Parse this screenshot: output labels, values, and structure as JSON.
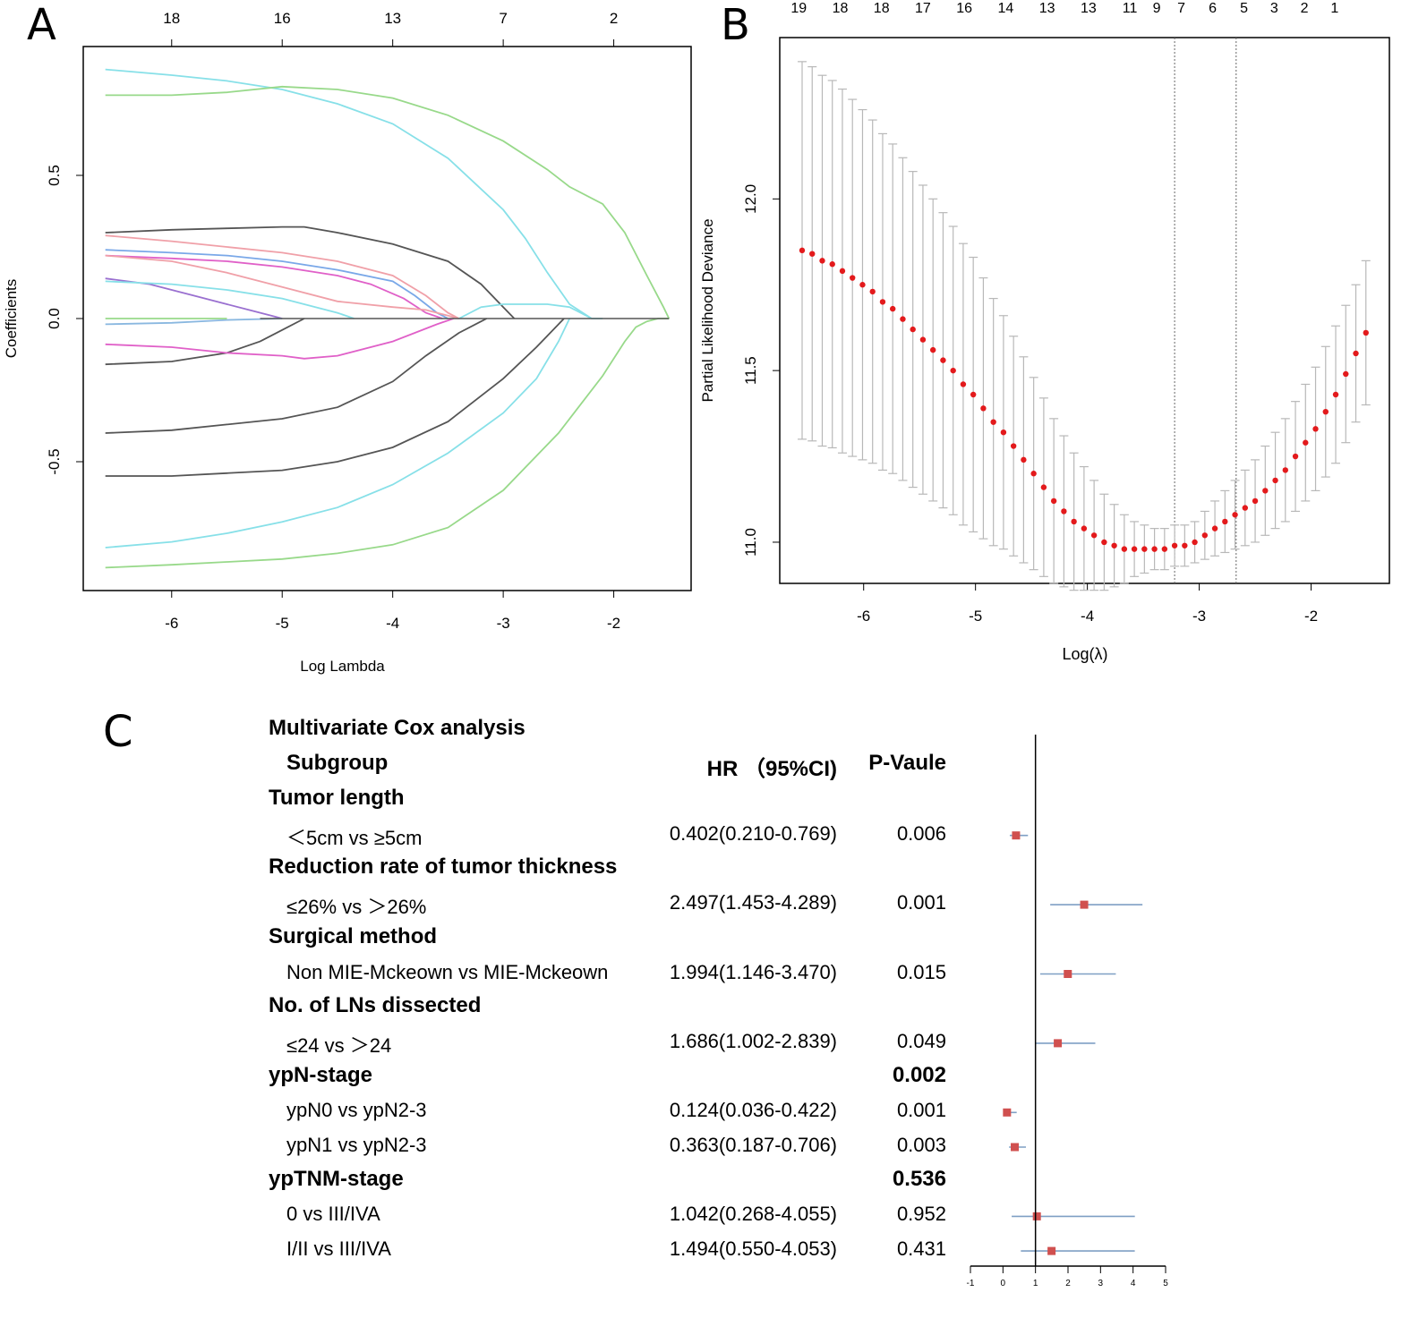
{
  "panels": {
    "A": {
      "label": "A",
      "chart_data": {
        "type": "line",
        "title": "",
        "xlabel": "Log Lambda",
        "ylabel": "Coefficients",
        "xlim": [
          -6.8,
          -1.3
        ],
        "ylim": [
          -0.95,
          0.95
        ],
        "xticks": [
          -6,
          -5,
          -4,
          -3,
          -2
        ],
        "yticks": [
          -0.5,
          0.0,
          0.5
        ],
        "top_axis": {
          "positions": [
            -6,
            -5,
            -4,
            -3,
            -2
          ],
          "labels": [
            "18",
            "16",
            "13",
            "7",
            "2"
          ]
        },
        "series": [
          {
            "color": "#87e0e8",
            "x": [
              -6.6,
              -6,
              -5.5,
              -5,
              -4.5,
              -4,
              -3.5,
              -3,
              -2.8,
              -2.6,
              -2.4,
              -2.2,
              -2.1
            ],
            "y": [
              0.87,
              0.85,
              0.83,
              0.8,
              0.75,
              0.68,
              0.56,
              0.38,
              0.28,
              0.16,
              0.05,
              0.0,
              0.0
            ]
          },
          {
            "color": "#98d98a",
            "x": [
              -6.6,
              -6,
              -5.5,
              -5,
              -4.5,
              -4,
              -3.5,
              -3,
              -2.6,
              -2.4,
              -2.1,
              -1.9,
              -1.7,
              -1.55,
              -1.5
            ],
            "y": [
              0.78,
              0.78,
              0.79,
              0.81,
              0.8,
              0.77,
              0.71,
              0.62,
              0.52,
              0.46,
              0.4,
              0.3,
              0.15,
              0.04,
              0.0
            ]
          },
          {
            "color": "#555555",
            "x": [
              -6.6,
              -6,
              -5.5,
              -5,
              -4.8,
              -4.5,
              -4,
              -3.5,
              -3.2,
              -3,
              -2.9
            ],
            "y": [
              0.3,
              0.31,
              0.315,
              0.32,
              0.32,
              0.3,
              0.26,
              0.2,
              0.12,
              0.04,
              0.0
            ]
          },
          {
            "color": "#f0a0a8",
            "x": [
              -6.6,
              -6,
              -5.5,
              -5,
              -4.5,
              -4,
              -3.7,
              -3.5,
              -3.4
            ],
            "y": [
              0.29,
              0.27,
              0.25,
              0.23,
              0.2,
              0.15,
              0.08,
              0.02,
              0.0
            ]
          },
          {
            "color": "#7aa8e8",
            "x": [
              -6.6,
              -6,
              -5.5,
              -5,
              -4.5,
              -4,
              -3.8,
              -3.6,
              -3.5
            ],
            "y": [
              0.24,
              0.23,
              0.22,
              0.2,
              0.17,
              0.13,
              0.08,
              0.02,
              0.0
            ]
          },
          {
            "color": "#e060c8",
            "x": [
              -6.6,
              -6,
              -5.5,
              -5,
              -4.5,
              -4.2,
              -3.9,
              -3.7,
              -3.55
            ],
            "y": [
              0.22,
              0.21,
              0.2,
              0.18,
              0.15,
              0.12,
              0.07,
              0.02,
              0.0
            ]
          },
          {
            "color": "#f0a0a8",
            "x": [
              -6.6,
              -6,
              -5.5,
              -5,
              -4.5,
              -4,
              -3.7,
              -3.5,
              -3.4
            ],
            "y": [
              0.22,
              0.2,
              0.16,
              0.11,
              0.06,
              0.04,
              0.03,
              0.01,
              0.0
            ]
          },
          {
            "color": "#9a70d0",
            "x": [
              -6.6,
              -6.2,
              -5.8,
              -5.5,
              -5.3,
              -5.1,
              -5.0
            ],
            "y": [
              0.14,
              0.12,
              0.08,
              0.05,
              0.03,
              0.01,
              0.0
            ]
          },
          {
            "color": "#87e0e8",
            "x": [
              -6.6,
              -6,
              -5.5,
              -5,
              -4.7,
              -4.5,
              -4.35
            ],
            "y": [
              0.13,
              0.12,
              0.1,
              0.07,
              0.04,
              0.02,
              0.0
            ]
          },
          {
            "color": "#8ab8e0",
            "x": [
              -6.6,
              -6,
              -5.5,
              -5
            ],
            "y": [
              -0.02,
              -0.015,
              -0.005,
              0.0
            ]
          },
          {
            "color": "#98d98a",
            "x": [
              -6.6,
              -5.5
            ],
            "y": [
              0.0,
              0.0
            ]
          },
          {
            "color": "#555555",
            "x": [
              -6.6,
              -6,
              -5.5,
              -5.2,
              -5.0,
              -4.8
            ],
            "y": [
              -0.16,
              -0.15,
              -0.12,
              -0.08,
              -0.04,
              0.0
            ]
          },
          {
            "color": "#e060c8",
            "x": [
              -6.6,
              -6,
              -5.5,
              -5,
              -4.8,
              -4.5,
              -4,
              -3.8,
              -3.6,
              -3.45
            ],
            "y": [
              -0.09,
              -0.1,
              -0.12,
              -0.13,
              -0.14,
              -0.13,
              -0.08,
              -0.05,
              -0.02,
              0.0
            ]
          },
          {
            "color": "#87e0e8",
            "x": [
              -3.4,
              -3.2,
              -3,
              -2.6,
              -2.4,
              -2.2
            ],
            "y": [
              0.0,
              0.04,
              0.05,
              0.05,
              0.04,
              0.0
            ]
          },
          {
            "color": "#555555",
            "x": [
              -6.6,
              -6,
              -5.5,
              -5,
              -4.5,
              -4,
              -3.7,
              -3.4,
              -3.2,
              -3.15
            ],
            "y": [
              -0.4,
              -0.39,
              -0.37,
              -0.35,
              -0.31,
              -0.22,
              -0.13,
              -0.05,
              -0.01,
              0.0
            ]
          },
          {
            "color": "#555555",
            "x": [
              -6.6,
              -6,
              -5.5,
              -5,
              -4.5,
              -4,
              -3.5,
              -3,
              -2.7,
              -2.5,
              -2.45
            ],
            "y": [
              -0.55,
              -0.55,
              -0.54,
              -0.53,
              -0.5,
              -0.45,
              -0.36,
              -0.21,
              -0.1,
              -0.02,
              0.0
            ]
          },
          {
            "color": "#87e0e8",
            "x": [
              -6.6,
              -6,
              -5.5,
              -5,
              -4.5,
              -4,
              -3.5,
              -3,
              -2.7,
              -2.5,
              -2.4
            ],
            "y": [
              -0.8,
              -0.78,
              -0.75,
              -0.71,
              -0.66,
              -0.58,
              -0.47,
              -0.33,
              -0.21,
              -0.08,
              0.0
            ]
          },
          {
            "color": "#98d98a",
            "x": [
              -6.6,
              -6,
              -5.5,
              -5,
              -4.5,
              -4,
              -3.5,
              -3,
              -2.5,
              -2.1,
              -1.9,
              -1.8,
              -1.7,
              -1.6,
              -1.5
            ],
            "y": [
              -0.87,
              -0.86,
              -0.85,
              -0.84,
              -0.82,
              -0.79,
              -0.73,
              -0.6,
              -0.4,
              -0.2,
              -0.08,
              -0.03,
              -0.01,
              0.0,
              0.0
            ]
          }
        ]
      }
    },
    "B": {
      "label": "B",
      "chart_data": {
        "type": "scatter",
        "title": "",
        "xlabel": "Log(λ)",
        "ylabel": "Partial Likelihood Deviance",
        "xlim": [
          -6.75,
          -1.3
        ],
        "ylim": [
          10.88,
          12.47
        ],
        "xticks": [
          -6,
          -5,
          -4,
          -3,
          -2
        ],
        "yticks": [
          11.0,
          11.5,
          12.0
        ],
        "vlines": [
          -3.22,
          -2.67
        ],
        "top_axis": {
          "positions": [
            -6.58,
            -6.21,
            -5.84,
            -5.47,
            -5.1,
            -4.73,
            -4.36,
            -3.99,
            -3.62,
            -3.38,
            -3.16,
            -2.88,
            -2.6,
            -2.33,
            -2.06,
            -1.79
          ],
          "labels": [
            "19",
            "18",
            "18",
            "17",
            "16",
            "14",
            "13",
            "13",
            "11",
            "9",
            "7",
            "6",
            "5",
            "3",
            "2",
            "1"
          ]
        },
        "points_x": [
          -6.55,
          -6.46,
          -6.37,
          -6.28,
          -6.19,
          -6.1,
          -6.01,
          -5.92,
          -5.83,
          -5.74,
          -5.65,
          -5.56,
          -5.47,
          -5.38,
          -5.29,
          -5.2,
          -5.11,
          -5.02,
          -4.93,
          -4.84,
          -4.75,
          -4.66,
          -4.57,
          -4.48,
          -4.39,
          -4.3,
          -4.21,
          -4.12,
          -4.03,
          -3.94,
          -3.85,
          -3.76,
          -3.67,
          -3.58,
          -3.49,
          -3.4,
          -3.31,
          -3.22,
          -3.13,
          -3.04,
          -2.95,
          -2.86,
          -2.77,
          -2.68,
          -2.59,
          -2.5,
          -2.41,
          -2.32,
          -2.23,
          -2.14,
          -2.05,
          -1.96,
          -1.87,
          -1.78,
          -1.69,
          -1.6,
          -1.51
        ],
        "points_y": [
          11.85,
          11.84,
          11.82,
          11.81,
          11.79,
          11.77,
          11.75,
          11.73,
          11.7,
          11.68,
          11.65,
          11.62,
          11.59,
          11.56,
          11.53,
          11.5,
          11.46,
          11.43,
          11.39,
          11.35,
          11.32,
          11.28,
          11.24,
          11.2,
          11.16,
          11.12,
          11.09,
          11.06,
          11.04,
          11.02,
          11.0,
          10.99,
          10.98,
          10.98,
          10.98,
          10.98,
          10.98,
          10.99,
          10.99,
          11.0,
          11.02,
          11.04,
          11.06,
          11.08,
          11.1,
          11.12,
          11.15,
          11.18,
          11.21,
          11.25,
          11.29,
          11.33,
          11.38,
          11.43,
          11.49,
          11.55,
          11.61
        ],
        "error_half_width": [
          0.55,
          0.545,
          0.54,
          0.535,
          0.53,
          0.52,
          0.51,
          0.5,
          0.49,
          0.48,
          0.47,
          0.46,
          0.45,
          0.44,
          0.43,
          0.42,
          0.41,
          0.4,
          0.38,
          0.36,
          0.34,
          0.32,
          0.3,
          0.28,
          0.26,
          0.24,
          0.22,
          0.2,
          0.18,
          0.16,
          0.14,
          0.12,
          0.1,
          0.08,
          0.07,
          0.06,
          0.06,
          0.06,
          0.06,
          0.06,
          0.07,
          0.08,
          0.09,
          0.1,
          0.11,
          0.12,
          0.13,
          0.14,
          0.15,
          0.16,
          0.17,
          0.18,
          0.19,
          0.2,
          0.2,
          0.2,
          0.21
        ]
      }
    },
    "C": {
      "label": "C",
      "title": "Multivariate Cox analysis",
      "header": {
        "subgroup": "Subgroup",
        "hr": "HR （95%CI)",
        "p": "P-Vaule"
      },
      "chart_data": {
        "type": "forest",
        "reference_line": 1,
        "xlim": [
          -1,
          5
        ],
        "xticks": [
          -1,
          0,
          1,
          2,
          3,
          4,
          5
        ],
        "rows": [
          {
            "label": "Tumor length",
            "bold": true
          },
          {
            "label": "＜5cm vs ≥5cm",
            "hr_text": "0.402(0.210-0.769)",
            "p": "0.006",
            "hr": 0.402,
            "lo": 0.21,
            "hi": 0.769
          },
          {
            "label": "Reduction rate of tumor thickness",
            "bold": true
          },
          {
            "label": "≤26% vs ＞26%",
            "hr_text": "2.497(1.453-4.289)",
            "p": "0.001",
            "hr": 2.497,
            "lo": 1.453,
            "hi": 4.289
          },
          {
            "label": "Surgical method",
            "bold": true
          },
          {
            "label": "Non MIE-Mckeown vs MIE-Mckeown",
            "hr_text": "1.994(1.146-3.470)",
            "p": "0.015",
            "hr": 1.994,
            "lo": 1.146,
            "hi": 3.47
          },
          {
            "label": "No. of LNs dissected",
            "bold": true
          },
          {
            "label": "≤24 vs ＞24",
            "hr_text": "1.686(1.002-2.839)",
            "p": "0.049",
            "hr": 1.686,
            "lo": 1.002,
            "hi": 2.839
          },
          {
            "label": "ypN-stage",
            "bold": true,
            "p": "0.002"
          },
          {
            "label": "ypN0 vs ypN2-3",
            "hr_text": "0.124(0.036-0.422)",
            "p": "0.001",
            "hr": 0.124,
            "lo": 0.036,
            "hi": 0.422
          },
          {
            "label": "ypN1 vs ypN2-3",
            "hr_text": "0.363(0.187-0.706)",
            "p": "0.003",
            "hr": 0.363,
            "lo": 0.187,
            "hi": 0.706
          },
          {
            "label": "ypTNM-stage",
            "bold": true,
            "p": "0.536"
          },
          {
            "label": "0 vs III/IVA",
            "hr_text": "1.042(0.268-4.055)",
            "p": "0.952",
            "hr": 1.042,
            "lo": 0.268,
            "hi": 4.055
          },
          {
            "label": "I/II vs III/IVA",
            "hr_text": "1.494(0.550-4.053)",
            "p": "0.431",
            "hr": 1.494,
            "lo": 0.55,
            "hi": 4.053
          }
        ]
      }
    }
  }
}
